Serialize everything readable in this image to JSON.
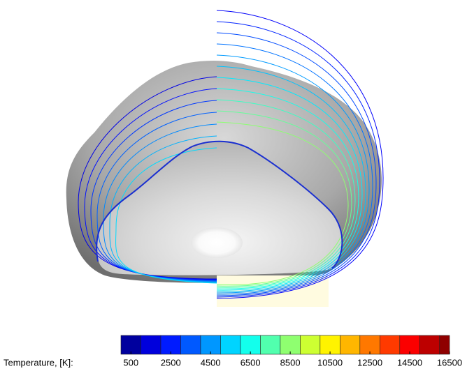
{
  "colorbar": {
    "label": "Temperature, [K]:",
    "lim": [
      0,
      16500
    ],
    "ticks": [
      500,
      2500,
      4500,
      6500,
      8500,
      10500,
      12500,
      14500,
      16500
    ],
    "colormap": "jet"
  }
}
